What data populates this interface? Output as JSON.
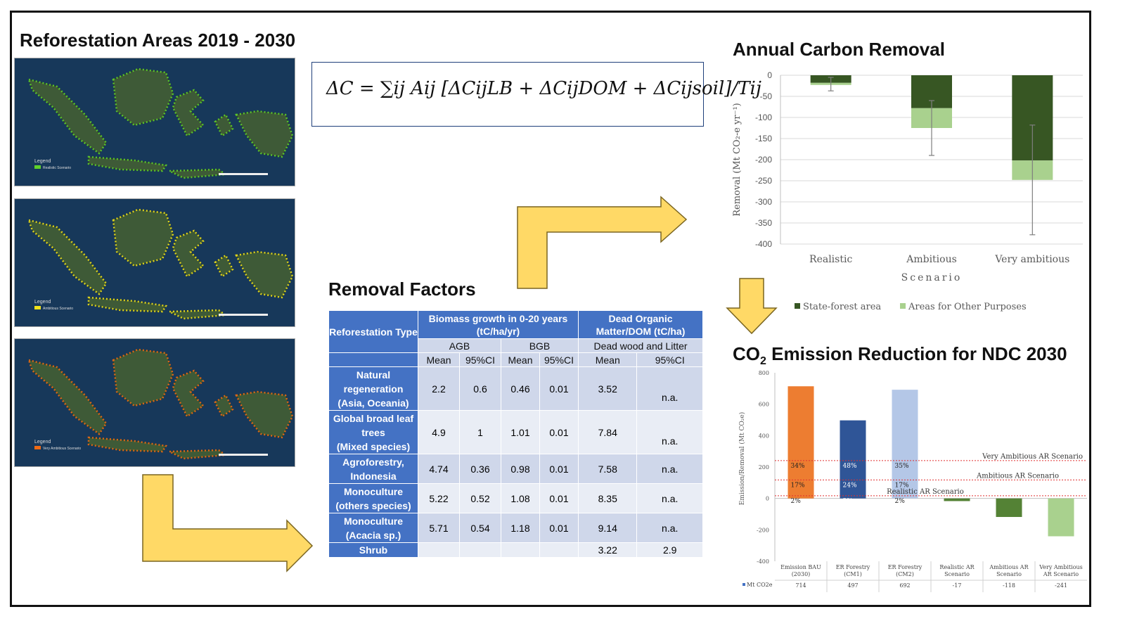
{
  "headings": {
    "maps": "Reforestation Areas 2019 - 2030",
    "removal_factors": "Removal Factors",
    "annual_carbon": "Annual Carbon Removal",
    "co2_prefix": "CO",
    "co2_sub": "2",
    "co2_suffix": " Emission Reduction for NDC 2030"
  },
  "maps": [
    {
      "legend_title": "Legend",
      "legend_item": "Realistic Scenario",
      "color": "#5fd12a"
    },
    {
      "legend_title": "Legend",
      "legend_item": "Ambitious Scenario",
      "color": "#f2e21a"
    },
    {
      "legend_title": "Legend",
      "legend_item": "Very Ambitious Scenario",
      "color": "#f06a14"
    }
  ],
  "formula": {
    "text": "ΔC = ∑ij Aij [ΔCijLB + ΔCijDOM + ΔCijsoil]/Tij"
  },
  "table": {
    "col_type": "Reforestation Type",
    "col_biomass_1": "Biomass growth in 0-20 years",
    "col_biomass_2": "(tC/ha/yr)",
    "col_dom_1": "Dead Organic",
    "col_dom_2": "Matter/DOM (tC/ha)",
    "agb": "AGB",
    "bgb": "BGB",
    "dead_wood": "Dead wood and Litter",
    "mean": "Mean",
    "ci": "95%CI",
    "rows": [
      {
        "type": [
          "Natural",
          "regeneration",
          "(Asia, Oceania)"
        ],
        "vals": [
          "2.2",
          "0.6",
          "0.46",
          "0.01",
          "3.52",
          "n.a."
        ]
      },
      {
        "type": [
          "Global broad leaf",
          "trees",
          "(Mixed species)"
        ],
        "vals": [
          "4.9",
          "1",
          "1.01",
          "0.01",
          "7.84",
          "n.a."
        ]
      },
      {
        "type": [
          "Agroforestry,",
          "Indonesia"
        ],
        "vals": [
          "4.74",
          "0.36",
          "0.98",
          "0.01",
          "7.58",
          "n.a."
        ]
      },
      {
        "type": [
          "Monoculture",
          "(others species)"
        ],
        "vals": [
          "5.22",
          "0.52",
          "1.08",
          "0.01",
          "8.35",
          "n.a."
        ]
      },
      {
        "type": [
          "Monoculture",
          "(Acacia sp.)"
        ],
        "vals": [
          "5.71",
          "0.54",
          "1.18",
          "0.01",
          "9.14",
          "n.a."
        ]
      },
      {
        "type": [
          "Shrub"
        ],
        "vals": [
          "",
          "",
          "",
          "",
          "3.22",
          "2.9"
        ]
      }
    ]
  },
  "chart_data": [
    {
      "type": "bar",
      "title": "Annual Carbon Removal",
      "ylabel": "Removal (Mt CO₂-e yr⁻¹)",
      "xlabel": "Scenario",
      "categories": [
        "Realistic",
        "Ambitious",
        "Very ambitious"
      ],
      "ylim": [
        -400,
        0
      ],
      "yticks": [
        "0",
        "-50",
        "-100",
        "-150",
        "-200",
        "-250",
        "-300",
        "-350",
        "-400"
      ],
      "stacked": true,
      "series": [
        {
          "name": "State-forest area",
          "values": [
            -18,
            -78,
            -202
          ],
          "color": "#375623"
        },
        {
          "name": "Areas for Other Purposes",
          "values": [
            -5,
            -47,
            -46
          ],
          "color": "#a9d18e"
        }
      ],
      "error_bars": [
        [
          -37,
          -5
        ],
        [
          -190,
          -60
        ],
        [
          -378,
          -118
        ]
      ],
      "grid": true,
      "legend": "bottom"
    },
    {
      "type": "bar",
      "title": "CO2 Emission Reduction for NDC 2030",
      "ylabel": "Emission/Removal (Mt CO₂e)",
      "ylim": [
        -400,
        800
      ],
      "yticks": [
        "800",
        "600",
        "400",
        "200",
        "0",
        "-200",
        "-400"
      ],
      "categories": [
        [
          "Emission BAU",
          "(2030)"
        ],
        [
          "ER Forestry",
          "(CM1)"
        ],
        [
          "ER Forestry",
          "(CM2)"
        ],
        [
          "Realistic AR",
          "Scenario"
        ],
        [
          "Ambitious AR",
          "Scenario"
        ],
        [
          "Very Ambitious",
          "AR Scenario"
        ]
      ],
      "series": [
        {
          "name": "Mt CO2e",
          "values": [
            714,
            497,
            692,
            -17,
            -118,
            -241
          ],
          "value_labels": [
            "714",
            "497",
            "692",
            "-17",
            "-118",
            "-241"
          ],
          "colors": [
            "#ed7d31",
            "#2f5597",
            "#b4c7e7",
            "#548235",
            "#548235",
            "#a9d18e"
          ]
        }
      ],
      "reference_lines": [
        {
          "label": "Very Ambitious AR Scenario",
          "value": 241
        },
        {
          "label": "Ambitious AR Scenario",
          "value": 118
        },
        {
          "label": "Realistic AR Scenario",
          "value": 17
        }
      ],
      "percent_labels": [
        [
          "34%",
          "17%",
          "2%"
        ],
        [
          "48%",
          "24%",
          "3%"
        ],
        [
          "35%",
          "17%",
          "2%"
        ]
      ],
      "legend": "table-bottom"
    }
  ],
  "colors": {
    "arrow_fill": "#ffd966",
    "arrow_stroke": "#7a6520",
    "table_header": "#4472c4"
  }
}
